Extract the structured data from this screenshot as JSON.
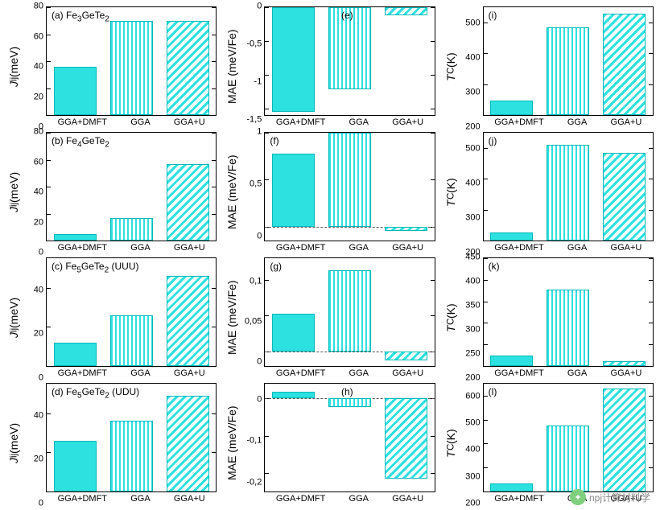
{
  "global": {
    "bar_color": "#2de1e1",
    "border_color": "#000000",
    "background": "#ffffff",
    "categories": [
      "GGA+DMFT",
      "GGA",
      "GGA+U"
    ],
    "patterns": [
      "solid",
      "vlines",
      "diag"
    ]
  },
  "watermark": {
    "text": "npj计算材料学"
  },
  "panels": [
    {
      "id": "a",
      "row": 0,
      "col": 0,
      "label": "(a)   Fe₃GeTe₂",
      "ylabel": "Jᵢⱼ (meV)",
      "ymin": 0,
      "ymax": 80,
      "yticks": [
        0,
        20,
        40,
        60,
        80
      ],
      "values": [
        36,
        70,
        70
      ],
      "zero_line": false
    },
    {
      "id": "e",
      "row": 0,
      "col": 1,
      "label": "(e)",
      "label_pos": "inside-top-center",
      "ylabel": "MAE (meV/Fe)",
      "ymin": -1.6,
      "ymax": 0,
      "yticks": [
        0,
        -0.5,
        -1,
        -1.5
      ],
      "values": [
        -1.55,
        -1.22,
        -0.12
      ],
      "zero_line": false
    },
    {
      "id": "i",
      "row": 0,
      "col": 2,
      "label": "(i)",
      "ylabel": "T_C (K)",
      "ymin": 200,
      "ymax": 550,
      "yticks": [
        200,
        300,
        400,
        500
      ],
      "values": [
        248,
        485,
        530
      ],
      "zero_line": false
    },
    {
      "id": "b",
      "row": 1,
      "col": 0,
      "label": "(b)   Fe₄GeTe₂",
      "ylabel": "Jᵢⱼ (meV)",
      "ymin": 0,
      "ymax": 80,
      "yticks": [
        0,
        20,
        40,
        60,
        80
      ],
      "values": [
        5,
        17,
        57
      ],
      "zero_line": false
    },
    {
      "id": "f",
      "row": 1,
      "col": 1,
      "label": "(f)",
      "ylabel": "MAE (meV/Fe)",
      "ymin": -0.15,
      "ymax": 1.0,
      "yticks": [
        1,
        0.5,
        0
      ],
      "values": [
        0.78,
        1.0,
        -0.05
      ],
      "zero_line": true
    },
    {
      "id": "j",
      "row": 1,
      "col": 2,
      "label": "(j)",
      "ylabel": "T_C (K)",
      "ymin": 200,
      "ymax": 550,
      "yticks": [
        200,
        300,
        400,
        500
      ],
      "values": [
        225,
        510,
        485
      ],
      "zero_line": false
    },
    {
      "id": "c",
      "row": 2,
      "col": 0,
      "label": "(c)   Fe₅GeTe₂ (UUU)",
      "ylabel": "Jᵢⱼ (meV)",
      "ymin": 0,
      "ymax": 55,
      "yticks": [
        0,
        20,
        40
      ],
      "values": [
        12,
        26,
        46
      ],
      "zero_line": false
    },
    {
      "id": "g",
      "row": 2,
      "col": 1,
      "label": "(g)",
      "ylabel": "MAE (meV/Fe)",
      "ymin": -0.02,
      "ymax": 0.13,
      "yticks": [
        0.1,
        0.05,
        0
      ],
      "values": [
        0.053,
        0.113,
        -0.012
      ],
      "zero_line": true
    },
    {
      "id": "k",
      "row": 2,
      "col": 2,
      "label": "(k)",
      "ylabel": "T_C (K)",
      "ymin": 200,
      "ymax": 450,
      "yticks": [
        200,
        250,
        300,
        350,
        400,
        450
      ],
      "values": [
        225,
        378,
        212
      ],
      "zero_line": false
    },
    {
      "id": "d",
      "row": 3,
      "col": 0,
      "label": "(d)   Fe₅GeTe₂ (UDU)",
      "ylabel": "Jᵢⱼ (meV)",
      "ymin": 0,
      "ymax": 55,
      "yticks": [
        0,
        20,
        40
      ],
      "values": [
        26,
        36,
        49
      ],
      "zero_line": false
    },
    {
      "id": "h",
      "row": 3,
      "col": 1,
      "label": "(h)",
      "label_pos": "inside-top-center",
      "ylabel": "MAE (meV/Fe)",
      "ymin": -0.25,
      "ymax": 0.04,
      "yticks": [
        0,
        -0.1,
        -0.2
      ],
      "values": [
        0.018,
        -0.022,
        -0.215
      ],
      "zero_line": true
    },
    {
      "id": "l",
      "row": 3,
      "col": 2,
      "label": "(l)",
      "ylabel": "T_C (K)",
      "ymin": 200,
      "ymax": 650,
      "yticks": [
        200,
        300,
        400,
        500,
        600
      ],
      "values": [
        232,
        475,
        630
      ],
      "zero_line": false
    }
  ]
}
